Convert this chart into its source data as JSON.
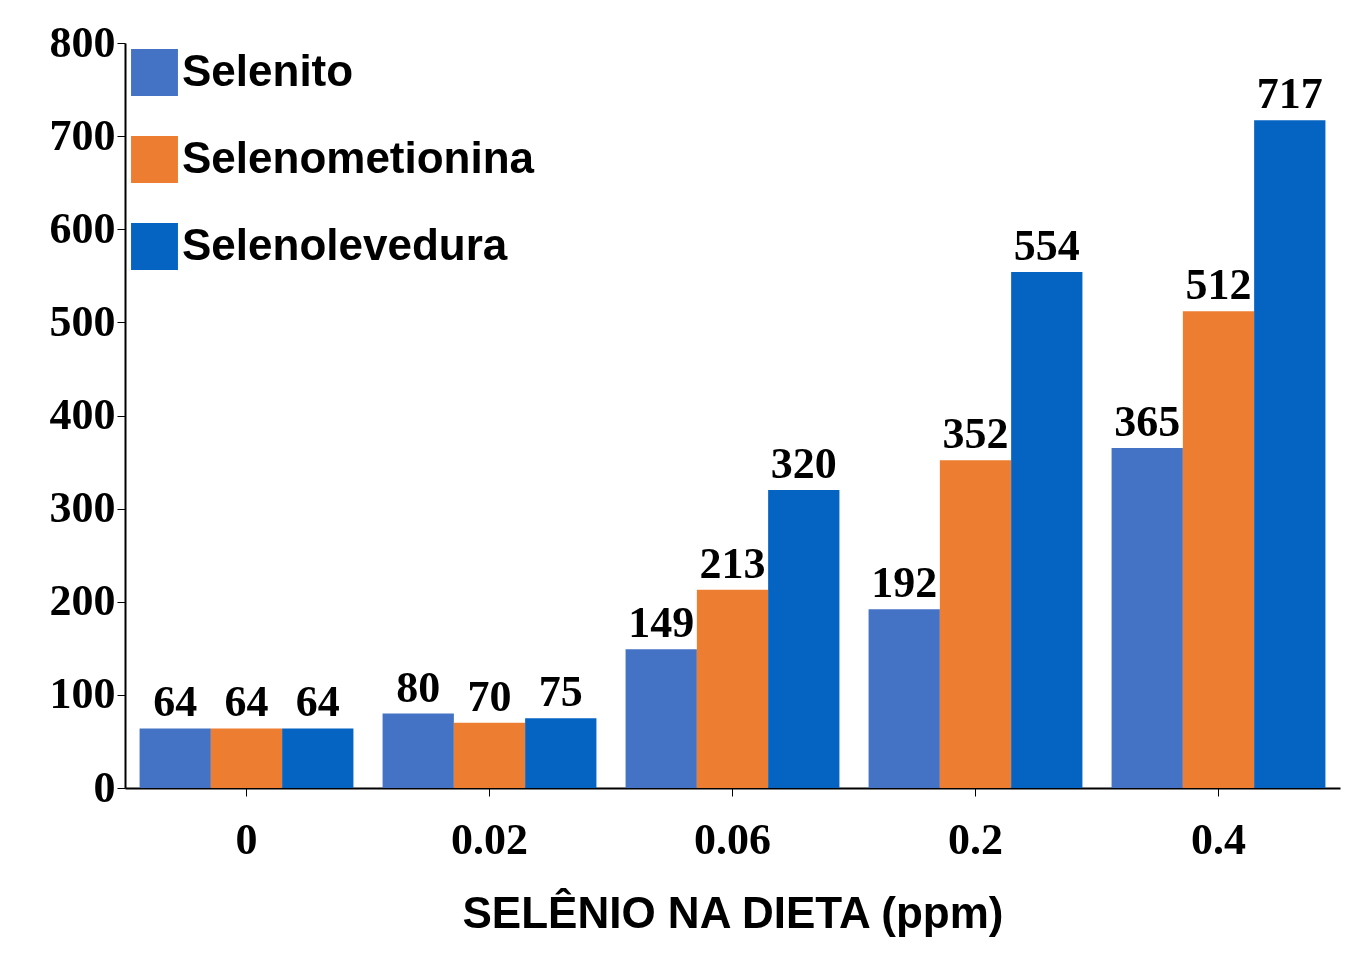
{
  "chart_data": {
    "type": "bar",
    "xlabel": "SELÊNIO NA DIETA (ppm)",
    "categories": [
      "0",
      "0.02",
      "0.06",
      "0.2",
      "0.4"
    ],
    "series": [
      {
        "name": "Selenito",
        "color": "#4472c4",
        "values": [
          64,
          80,
          149,
          192,
          365
        ]
      },
      {
        "name": "Selenometionina",
        "color": "#ed7d31",
        "values": [
          64,
          70,
          213,
          352,
          512
        ]
      },
      {
        "name": "Selenolevedura",
        "color": "#0563c1",
        "values": [
          64,
          75,
          320,
          554,
          717
        ]
      }
    ],
    "ylim": [
      0,
      800
    ],
    "yticks": [
      0,
      100,
      200,
      300,
      400,
      500,
      600,
      700,
      800
    ],
    "grid": false,
    "legend": "top left",
    "data_labels": true
  }
}
